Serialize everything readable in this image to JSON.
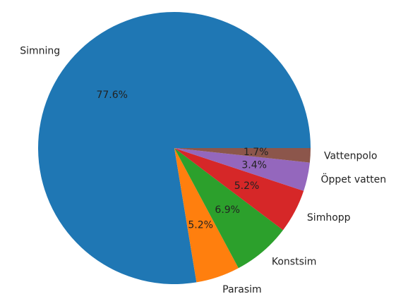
{
  "chart_data": {
    "type": "pie",
    "categories": [
      "Simning",
      "Parasim",
      "Konstsim",
      "Simhopp",
      "Öppet vatten",
      "Vattenpolo"
    ],
    "values": [
      77.6,
      5.2,
      6.9,
      5.2,
      3.4,
      1.7
    ],
    "value_labels": [
      "77.6%",
      "5.2%",
      "6.9%",
      "5.2%",
      "3.4%",
      "1.7%"
    ],
    "colors": [
      "#1f77b4",
      "#ff7f0e",
      "#2ca02c",
      "#d62728",
      "#9467bd",
      "#8c564b"
    ]
  }
}
